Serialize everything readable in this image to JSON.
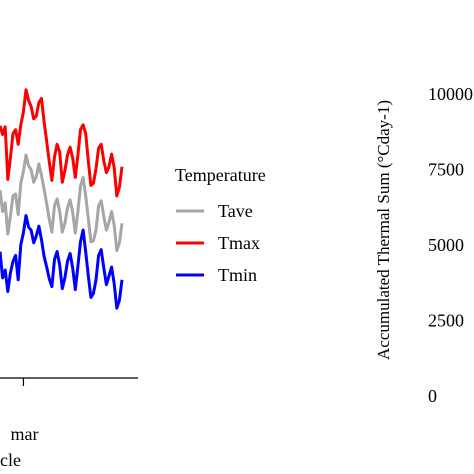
{
  "chart_data": [
    {
      "type": "line",
      "xlabel_partial": "cle",
      "x_ticks": [
        {
          "label": "mar",
          "position": 0.17
        }
      ],
      "visible_x_range": [
        0.0,
        1.0
      ],
      "ylim": [
        0,
        40
      ],
      "series": [
        {
          "name": "Tave",
          "color": "#a6a6a6",
          "values": [
            20.5,
            18.3,
            19.2,
            16.0,
            17.8,
            19.9,
            20.1,
            18.0,
            21.2,
            22.4,
            24.1,
            23.0,
            22.6,
            21.3,
            21.9,
            23.2,
            22.0,
            20.6,
            19.1,
            17.5,
            16.2,
            18.9,
            19.6,
            18.3,
            16.2,
            17.1,
            18.7,
            19.5,
            18.2,
            16.1,
            18.3,
            20.9,
            21.8,
            19.9,
            17.6,
            15.2,
            15.3,
            16.4,
            18.9,
            19.4,
            17.8,
            16.4,
            17.2,
            18.3,
            16.9,
            14.3,
            15.1,
            17.1
          ]
        },
        {
          "name": "Tmax",
          "color": "#ff0000",
          "values": [
            27.1,
            26.2,
            27.0,
            21.6,
            23.8,
            26.3,
            26.7,
            25.2,
            27.2,
            28.5,
            30.8,
            29.7,
            29.1,
            27.8,
            28.1,
            29.5,
            29.9,
            27.5,
            25.5,
            23.4,
            21.5,
            23.9,
            25.2,
            24.4,
            21.3,
            22.5,
            24.1,
            24.9,
            23.8,
            21.8,
            24.1,
            26.7,
            27.2,
            26.3,
            23.5,
            21.0,
            21.2,
            22.7,
            24.8,
            25.2,
            23.5,
            22.3,
            22.9,
            24.2,
            22.8,
            19.9,
            20.8,
            22.9
          ]
        },
        {
          "name": "Tmin",
          "color": "#0000ff",
          "values": [
            14.2,
            11.5,
            12.3,
            10.1,
            12.0,
            13.2,
            13.8,
            11.3,
            14.9,
            16.1,
            17.9,
            16.7,
            16.4,
            15.1,
            15.8,
            16.8,
            15.4,
            13.7,
            12.6,
            11.4,
            10.6,
            13.4,
            14.2,
            12.8,
            10.4,
            11.5,
            13.2,
            14.0,
            12.5,
            10.3,
            12.7,
            15.2,
            16.4,
            14.2,
            11.7,
            9.5,
            9.9,
            11.3,
            13.8,
            14.4,
            12.5,
            10.8,
            11.7,
            12.6,
            10.9,
            8.4,
            9.2,
            11.3
          ]
        }
      ],
      "legend": {
        "title": "Temperature",
        "placement": "right",
        "entries": [
          "Tave",
          "Tmax",
          "Tmin"
        ]
      }
    },
    {
      "type": "line",
      "ylabel": "Accumulated Thermal Sum (°Cday-1)",
      "y_ticks": [
        "0",
        "2500",
        "5000",
        "7500",
        "10000"
      ],
      "y_ticks_partial": [
        "0",
        "2500",
        "5000",
        "7500",
        "10000"
      ],
      "ylim": [
        0,
        10000
      ]
    }
  ]
}
